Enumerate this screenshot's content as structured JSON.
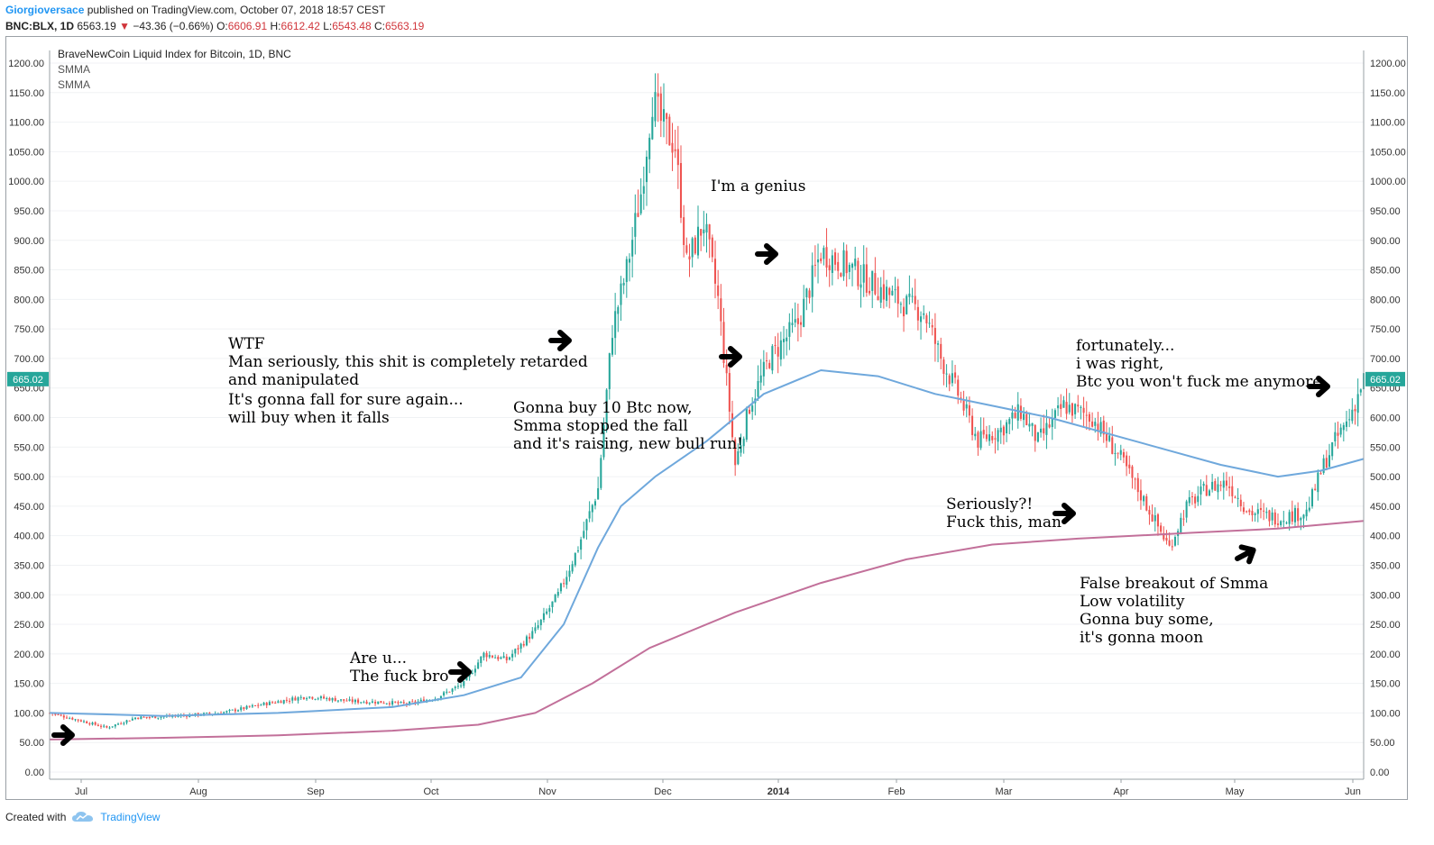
{
  "header": {
    "author": "Giorgioversace",
    "published_text": "published on TradingView.com, October 07, 2018 18:57 CEST",
    "symbol": "BNC:BLX, 1D",
    "last": "6563.19",
    "change": "−43.36 (−0.66%)",
    "o_label": "O:",
    "o_value": "6606.91",
    "h_label": "H:",
    "h_value": "6612.42",
    "l_label": "L:",
    "l_value": "6543.48",
    "c_label": "C:",
    "c_value": "6563.19"
  },
  "legend": {
    "title": "BraveNewCoin Liquid Index for Bitcoin, 1D, BNC",
    "line1": "SMMA",
    "line2": "SMMA"
  },
  "footer": {
    "created_with": "Created with",
    "brand": "TradingView"
  },
  "colors": {
    "up": "#26a69a",
    "down": "#ef5350",
    "smma_fast": "#6fa8dc",
    "smma_slow": "#c2709a",
    "price_tag": "#26a69a"
  },
  "annotations": [
    {
      "id": "wtf",
      "text": "WTF\nMan seriously, this shit is completely retarded\nand manipulated"
    },
    {
      "id": "fall",
      "text": "It's gonna fall for sure again...\nwill buy when it falls"
    },
    {
      "id": "buy10",
      "text": "Gonna buy 10 Btc now,\nSmma stopped the fall\nand it's raising, new bull run!"
    },
    {
      "id": "genius",
      "text": "I'm a genius"
    },
    {
      "id": "areu",
      "text": "Are u...\nThe fuck bro"
    },
    {
      "id": "seriously",
      "text": "Seriously?!\nFuck this, man"
    },
    {
      "id": "fortunately",
      "text": "fortunately...\ni was right,\nBtc you won't fuck me anymore"
    },
    {
      "id": "false",
      "text": "False breakout of Smma\nLow volatility\nGonna buy some,\nit's gonna moon"
    }
  ],
  "chart_data": {
    "type": "candlestick",
    "title": "BraveNewCoin Liquid Index for Bitcoin, 1D, BNC",
    "ylim": [
      0,
      1200
    ],
    "y_ticks": [
      "1200.00",
      "1150.00",
      "1100.00",
      "1050.00",
      "1000.00",
      "950.00",
      "900.00",
      "850.00",
      "800.00",
      "750.00",
      "700.00",
      "650.00",
      "600.00",
      "550.00",
      "500.00",
      "450.00",
      "400.00",
      "350.00",
      "300.00",
      "250.00",
      "200.00",
      "150.00",
      "100.00",
      "50.00",
      "0.00"
    ],
    "x_ticks": [
      "Jul",
      "Aug",
      "Sep",
      "Oct",
      "Nov",
      "Dec",
      "2014",
      "Feb",
      "Mar",
      "Apr",
      "May",
      "Jun"
    ],
    "last_price_label": "665.02",
    "close_path": [
      [
        0,
        100
      ],
      [
        10,
        88
      ],
      [
        20,
        75
      ],
      [
        30,
        92
      ],
      [
        45,
        95
      ],
      [
        60,
        100
      ],
      [
        75,
        115
      ],
      [
        90,
        128
      ],
      [
        105,
        120
      ],
      [
        118,
        118
      ],
      [
        125,
        115
      ],
      [
        135,
        125
      ],
      [
        145,
        150
      ],
      [
        152,
        200
      ],
      [
        160,
        190
      ],
      [
        170,
        240
      ],
      [
        178,
        300
      ],
      [
        185,
        380
      ],
      [
        192,
        480
      ],
      [
        197,
        750
      ],
      [
        202,
        850
      ],
      [
        207,
        980
      ],
      [
        211,
        1140
      ],
      [
        214,
        1100
      ],
      [
        219,
        1060
      ],
      [
        223,
        860
      ],
      [
        229,
        930
      ],
      [
        234,
        800
      ],
      [
        240,
        520
      ],
      [
        245,
        620
      ],
      [
        252,
        700
      ],
      [
        262,
        760
      ],
      [
        270,
        880
      ],
      [
        278,
        860
      ],
      [
        290,
        820
      ],
      [
        300,
        790
      ],
      [
        306,
        780
      ],
      [
        312,
        700
      ],
      [
        318,
        640
      ],
      [
        325,
        560
      ],
      [
        333,
        580
      ],
      [
        340,
        610
      ],
      [
        346,
        560
      ],
      [
        355,
        620
      ],
      [
        365,
        600
      ],
      [
        375,
        530
      ],
      [
        383,
        460
      ],
      [
        392,
        380
      ],
      [
        398,
        450
      ],
      [
        405,
        480
      ],
      [
        412,
        490
      ],
      [
        420,
        440
      ],
      [
        430,
        430
      ],
      [
        440,
        440
      ],
      [
        446,
        520
      ],
      [
        450,
        560
      ],
      [
        455,
        600
      ],
      [
        460,
        665
      ]
    ],
    "series": [
      {
        "name": "SMMA",
        "type": "line",
        "points": [
          [
            0,
            100
          ],
          [
            40,
            95
          ],
          [
            80,
            100
          ],
          [
            120,
            110
          ],
          [
            145,
            130
          ],
          [
            165,
            160
          ],
          [
            180,
            250
          ],
          [
            192,
            380
          ],
          [
            200,
            450
          ],
          [
            212,
            500
          ],
          [
            230,
            560
          ],
          [
            250,
            640
          ],
          [
            270,
            680
          ],
          [
            290,
            670
          ],
          [
            310,
            640
          ],
          [
            330,
            620
          ],
          [
            350,
            600
          ],
          [
            380,
            560
          ],
          [
            410,
            520
          ],
          [
            430,
            500
          ],
          [
            445,
            510
          ],
          [
            460,
            530
          ]
        ]
      },
      {
        "name": "SMMA",
        "type": "line",
        "points": [
          [
            0,
            55
          ],
          [
            40,
            58
          ],
          [
            80,
            62
          ],
          [
            120,
            70
          ],
          [
            150,
            80
          ],
          [
            170,
            100
          ],
          [
            190,
            150
          ],
          [
            210,
            210
          ],
          [
            240,
            270
          ],
          [
            270,
            320
          ],
          [
            300,
            360
          ],
          [
            330,
            385
          ],
          [
            360,
            395
          ],
          [
            400,
            405
          ],
          [
            430,
            412
          ],
          [
            460,
            425
          ]
        ]
      }
    ]
  }
}
